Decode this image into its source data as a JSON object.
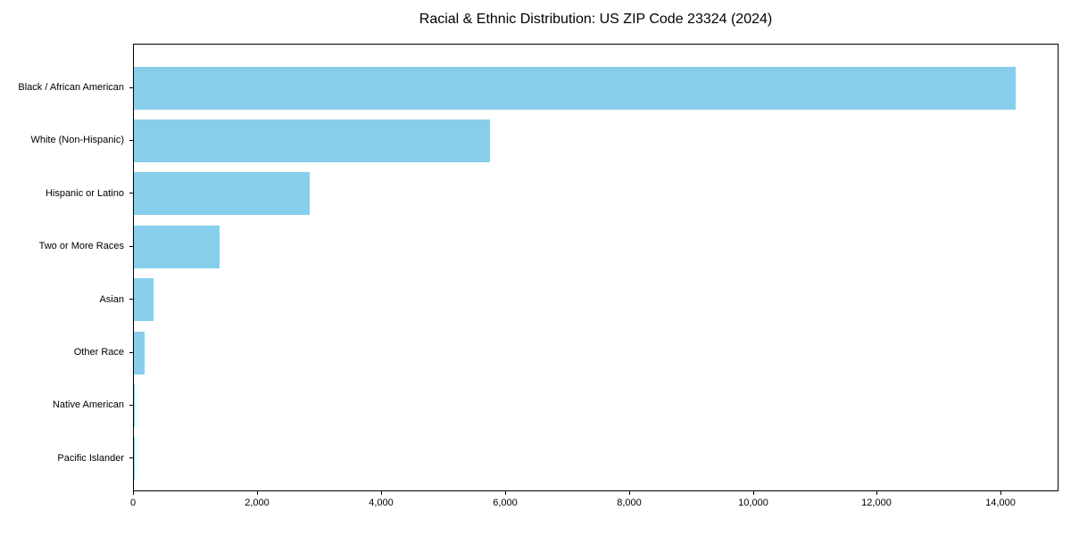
{
  "chart_data": {
    "type": "bar",
    "orientation": "horizontal",
    "title": "Racial & Ethnic Distribution: US ZIP Code 23324 (2024)",
    "categories": [
      "Black / African American",
      "White (Non-Hispanic)",
      "Hispanic or Latino",
      "Two or More Races",
      "Asian",
      "Other Race",
      "Native American",
      "Pacific Islander"
    ],
    "values": [
      14225,
      5740,
      2830,
      1375,
      310,
      175,
      20,
      8
    ],
    "xlabel": "",
    "ylabel": "",
    "xlim": [
      0,
      14930
    ],
    "xticks": [
      0,
      2000,
      4000,
      6000,
      8000,
      10000,
      12000,
      14000
    ],
    "xtick_labels": [
      "0",
      "2,000",
      "4,000",
      "6,000",
      "8,000",
      "10,000",
      "12,000",
      "14,000"
    ],
    "bar_color": "#87CEEB",
    "text_color": "#000000",
    "grid": false,
    "legend": null
  }
}
